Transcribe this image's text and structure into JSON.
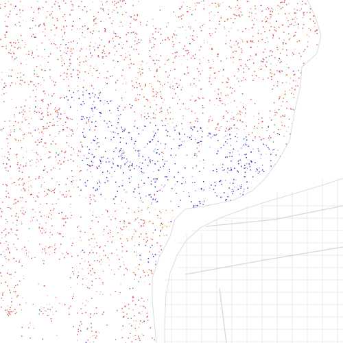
{
  "map": {
    "kind": "dot-density",
    "colors": {
      "background": "#ffffff",
      "water": "#ffffff",
      "road": "#e6e6e6",
      "white": "#e0584f",
      "black": "#3b35c9",
      "hispanic": "#e89a1c",
      "asian": "#3fb383",
      "other": "#9a9a9a"
    }
  }
}
